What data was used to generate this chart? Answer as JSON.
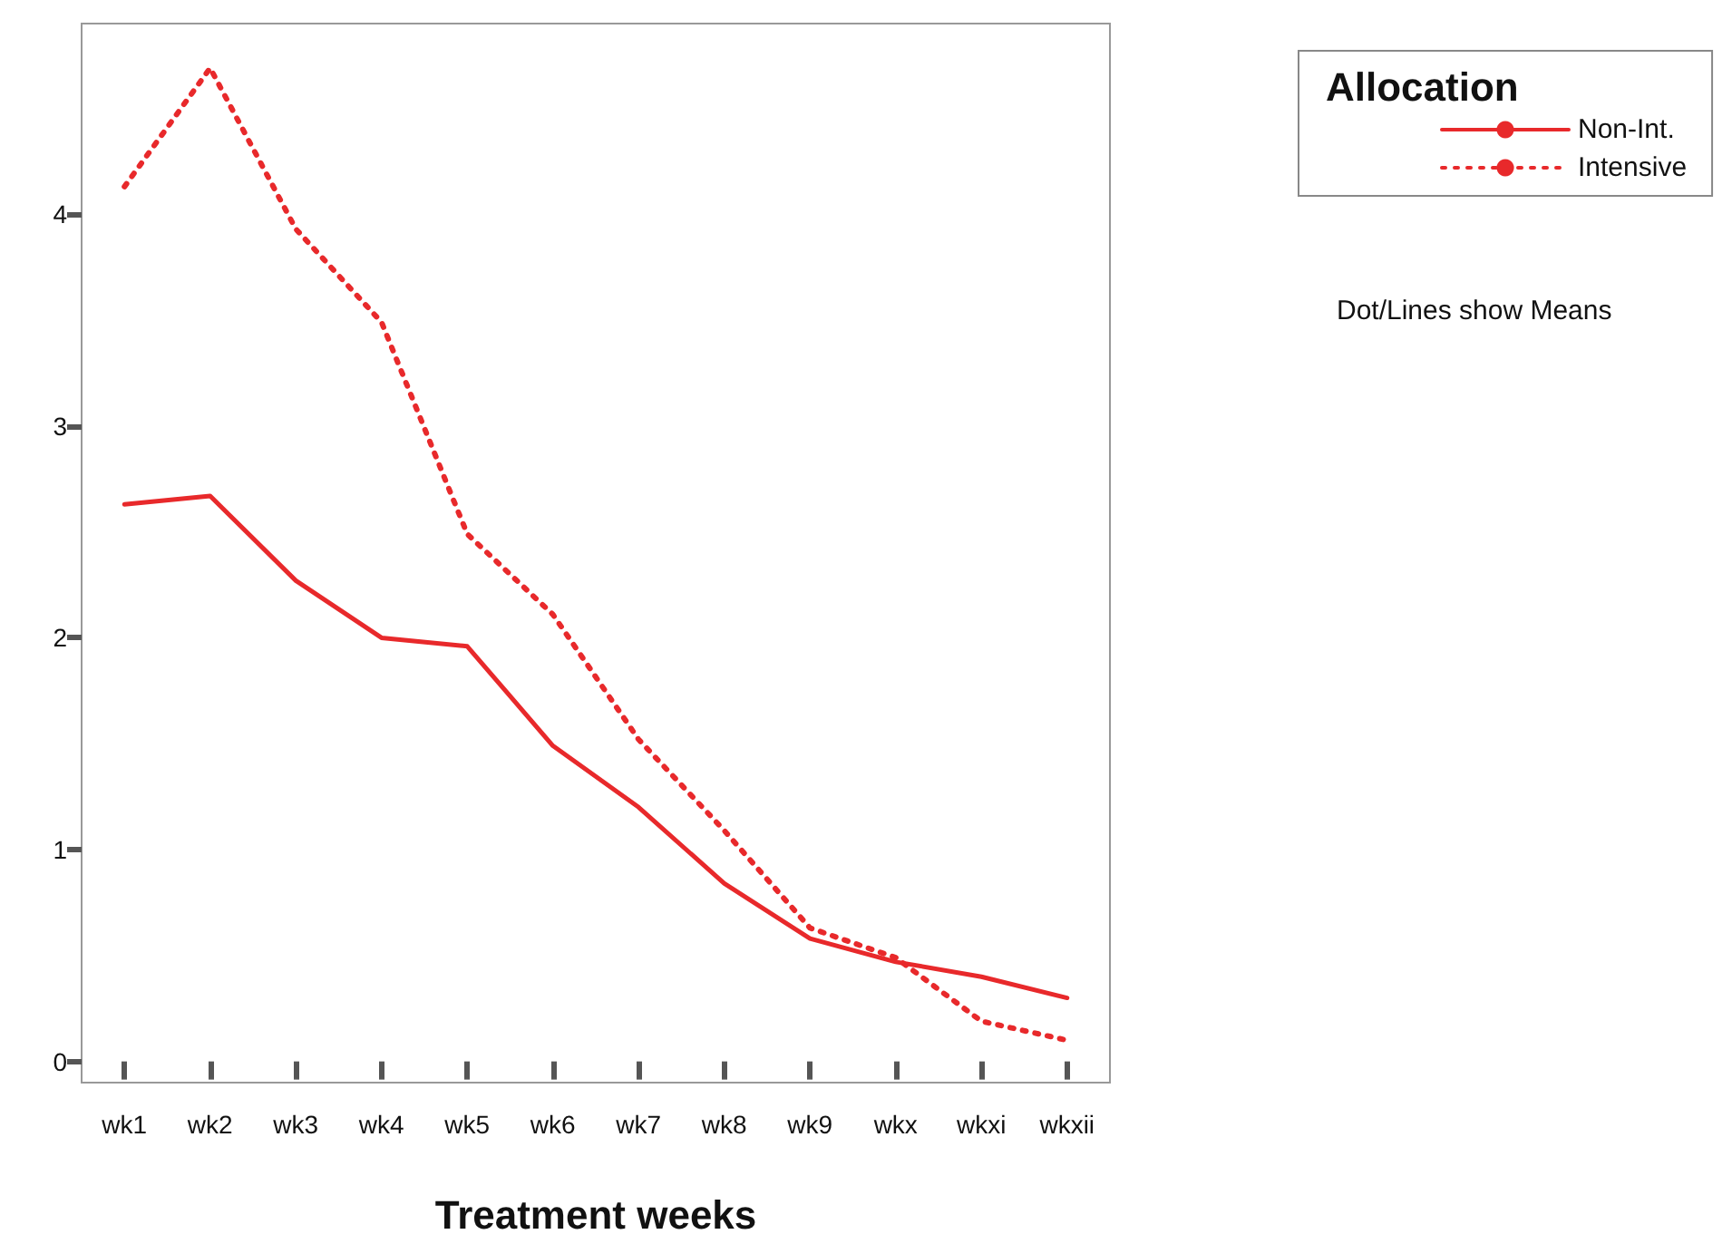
{
  "chart_data": {
    "type": "line",
    "xlabel": "Treatment weeks",
    "legend_title": "Allocation",
    "categories": [
      "wk1",
      "wk2",
      "wk3",
      "wk4",
      "wk5",
      "wk6",
      "wk7",
      "wk8",
      "wk9",
      "wkx",
      "wkxi",
      "wkxii"
    ],
    "series": [
      {
        "name": "Non-Int.",
        "color": "#e8292b",
        "line_style": "solid",
        "values": [
          2.63,
          2.67,
          2.27,
          2.0,
          1.96,
          1.49,
          1.2,
          0.84,
          0.58,
          0.47,
          0.4,
          0.3
        ]
      },
      {
        "name": "Intensive",
        "color": "#e8292b",
        "line_style": "dotted",
        "values": [
          4.13,
          4.69,
          3.93,
          3.49,
          2.49,
          2.11,
          1.52,
          1.09,
          0.63,
          0.49,
          0.19,
          0.1
        ]
      }
    ],
    "ylim": [
      -0.1,
      4.9
    ],
    "yticks": [
      0,
      1,
      2,
      3,
      4
    ],
    "grid": false,
    "marker": "none",
    "legend": "top right",
    "annotations": [
      "Dot/Lines show Means"
    ]
  }
}
